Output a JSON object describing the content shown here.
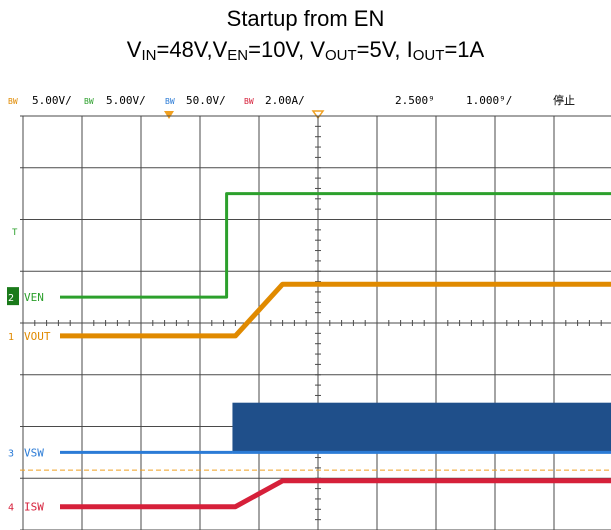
{
  "title": {
    "line1": "Startup from EN",
    "v_in_base": "V",
    "v_in_sub": "IN",
    "v_in_val": "=48V,",
    "v_en_base": "V",
    "v_en_sub": "EN",
    "v_en_val": "=10V, ",
    "v_out_base": "V",
    "v_out_sub": "OUT",
    "v_out_val": "=5V, ",
    "i_out_base": "I",
    "i_out_sub": "OUT",
    "i_out_val": "=1A"
  },
  "status_bar": {
    "ch1_bw": "BW",
    "ch1_scale": "5.00V/",
    "ch2_bw": "BW",
    "ch2_scale": "5.00V/",
    "ch3_bw": "BW",
    "ch3_scale": "50.0V/",
    "ch4_bw": "BW",
    "ch4_scale": "2.00A/",
    "trigger_time": "2.500⁹",
    "timebase": "1.000⁹/",
    "run_state": "停止"
  },
  "colors": {
    "ven": "#2ca02c",
    "vout": "#e08a00",
    "vsw": "#2b7bd6",
    "vsw_burst": "#1f4f8a",
    "isw": "#d6203a",
    "grid": "#4a4a4a",
    "trigger": "#f0a020"
  },
  "chart_data": {
    "type": "line",
    "x_unit": "ms",
    "x_range": [
      -5,
      5
    ],
    "x_divisions": 10,
    "y_divisions": 8,
    "grid": true,
    "series": [
      {
        "name": "VEN",
        "channel": 2,
        "scale": "5.00V/div",
        "x": [
          -5,
          -1.55,
          -1.55,
          5
        ],
        "y": [
          0,
          0,
          10,
          10
        ]
      },
      {
        "name": "VOUT",
        "channel": 1,
        "scale": "5.00V/div",
        "x": [
          -5,
          -1.4,
          0.0,
          -0.5,
          0.5,
          5
        ],
        "y": [
          0,
          0,
          0,
          0,
          5,
          5
        ]
      },
      {
        "name": "VSW",
        "channel": 3,
        "scale": "50.0V/div",
        "switching_start_ms": -1.45,
        "switching_peak_v": 48
      },
      {
        "name": "ISW",
        "channel": 4,
        "scale": "2.00A/div",
        "x": [
          -5,
          -1.4,
          -0.6,
          5
        ],
        "y": [
          0,
          0,
          1,
          1
        ]
      }
    ]
  }
}
